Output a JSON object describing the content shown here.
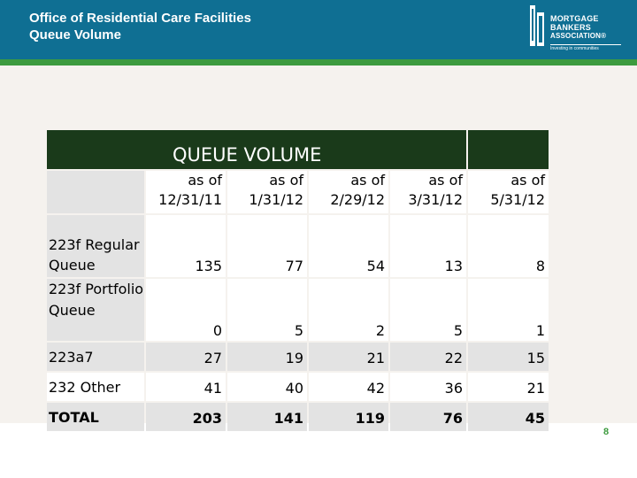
{
  "header": {
    "title_line1": "Office of Residential Care Facilities",
    "title_line2": "Queue Volume"
  },
  "logo": {
    "line1": "MORTGAGE",
    "line2": "BANKERS",
    "line3": "ASSOCIATION®",
    "tagline": "Investing in communities"
  },
  "table": {
    "title": "QUEUE VOLUME",
    "columns": [
      {
        "line1": "as of",
        "line2": "12/31/11"
      },
      {
        "line1": "as of",
        "line2": "1/31/12"
      },
      {
        "line1": "as of",
        "line2": "2/29/12"
      },
      {
        "line1": "as of",
        "line2": "3/31/12"
      },
      {
        "line1": "as of",
        "line2": "5/31/12"
      }
    ],
    "rows": [
      {
        "label": "223f Regular Queue",
        "values": [
          "135",
          "77",
          "54",
          "13",
          "8"
        ]
      },
      {
        "label": "223f Portfolio Queue",
        "values": [
          "0",
          "5",
          "2",
          "5",
          "1"
        ]
      },
      {
        "label": "223a7",
        "values": [
          "27",
          "19",
          "21",
          "22",
          "15"
        ]
      },
      {
        "label": "232 Other",
        "values": [
          "41",
          "40",
          "42",
          "36",
          "21"
        ]
      },
      {
        "label": "TOTAL",
        "values": [
          "203",
          "141",
          "119",
          "76",
          "45"
        ]
      }
    ]
  },
  "page_number": "8",
  "colors": {
    "header_blue": "#0f6f93",
    "band_green": "#3d9b3f",
    "table_header": "#1a3a1a"
  }
}
